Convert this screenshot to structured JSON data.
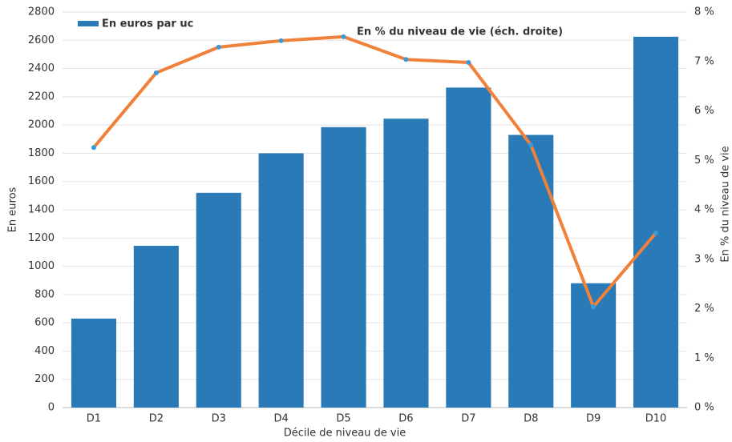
{
  "chart_data": {
    "type": "bar",
    "x_label": "Décile de niveau de vie",
    "y_label": "En euros",
    "y2_label": "En % du niveau de vie",
    "categories": [
      "D1",
      "D2",
      "D3",
      "D4",
      "D5",
      "D6",
      "D7",
      "D8",
      "D9",
      "D10"
    ],
    "series": [
      {
        "name": "En euros par uc",
        "type": "bar",
        "color": "#2a7ab8",
        "values": [
          630,
          1145,
          1520,
          1800,
          1985,
          2045,
          2265,
          1930,
          880,
          2625
        ]
      },
      {
        "name": "En % du niveau de vie (éch. droite)",
        "type": "line",
        "axis": "y2",
        "color": "#f0813a",
        "marker_color": "#3a9ad9",
        "values": [
          5.26,
          6.77,
          7.29,
          7.42,
          7.5,
          7.04,
          6.98,
          5.31,
          2.04,
          3.53
        ]
      }
    ],
    "ylim": [
      0,
      2800
    ],
    "yticks": [
      0,
      200,
      400,
      600,
      800,
      1000,
      1200,
      1400,
      1600,
      1800,
      2000,
      2200,
      2400,
      2600,
      2800
    ],
    "y2lim": [
      0,
      8
    ],
    "y2ticks": [
      {
        "value": 0,
        "label": "0 %"
      },
      {
        "value": 1,
        "label": "1 %"
      },
      {
        "value": 2,
        "label": "2 %"
      },
      {
        "value": 3,
        "label": "3 %"
      },
      {
        "value": 4,
        "label": "4 %"
      },
      {
        "value": 5,
        "label": "5 %"
      },
      {
        "value": 6,
        "label": "6 %"
      },
      {
        "value": 7,
        "label": "7 %"
      },
      {
        "value": 8,
        "label": "8 %"
      }
    ],
    "grid": true
  }
}
